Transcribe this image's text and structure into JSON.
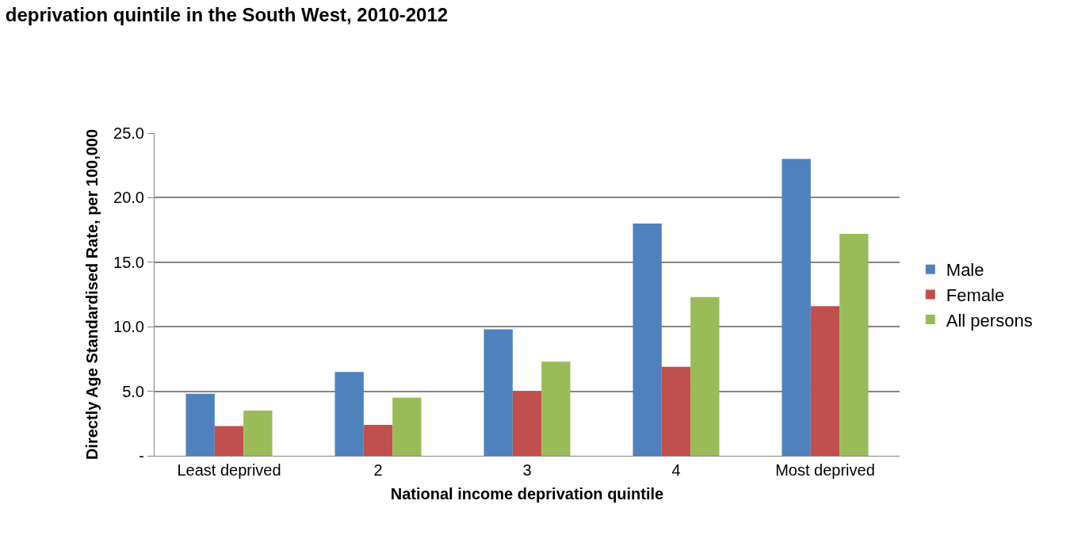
{
  "chart_data": {
    "type": "bar",
    "title": "deprivation quintile in the South West, 2010-2012",
    "xlabel": "National income deprivation quintile",
    "ylabel": "Directly Age Standardised Rate, per 100,000",
    "categories": [
      "Least deprived",
      "2",
      "3",
      "4",
      "Most deprived"
    ],
    "series": [
      {
        "name": "Male",
        "color": "#4f81bd",
        "values": [
          4.8,
          6.5,
          9.8,
          18.0,
          23.0
        ]
      },
      {
        "name": "Female",
        "color": "#c0504d",
        "values": [
          2.3,
          2.4,
          5.0,
          6.9,
          11.6
        ]
      },
      {
        "name": "All persons",
        "color": "#9bbb59",
        "values": [
          3.5,
          4.5,
          7.3,
          12.3,
          17.2
        ]
      }
    ],
    "ylim": [
      0,
      25
    ],
    "yticks": [
      {
        "value": 0,
        "label": "-"
      },
      {
        "value": 5,
        "label": "5.0"
      },
      {
        "value": 10,
        "label": "10.0"
      },
      {
        "value": 15,
        "label": "15.0"
      },
      {
        "value": 20,
        "label": "20.0"
      },
      {
        "value": 25,
        "label": "25.0"
      }
    ],
    "grid": "y",
    "legend": "right"
  }
}
